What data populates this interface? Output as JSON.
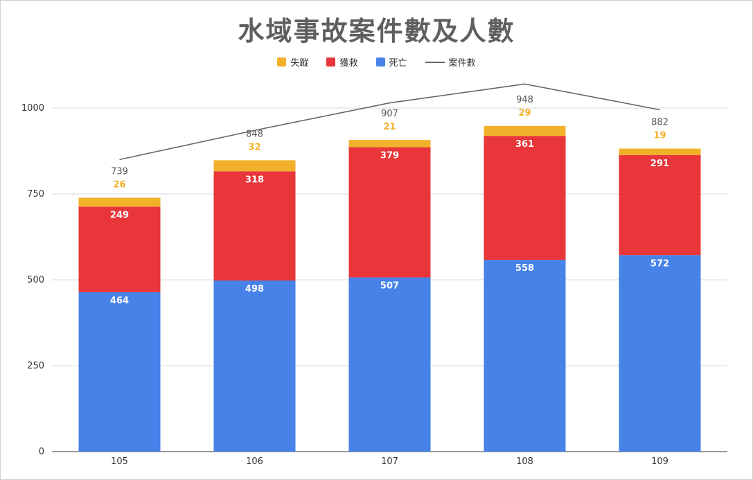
{
  "chart_data": {
    "type": "bar",
    "stacked": true,
    "title": "水域事故案件數及人數",
    "categories": [
      "105",
      "106",
      "107",
      "108",
      "109"
    ],
    "series": [
      {
        "name": "死亡",
        "color": "#4682e8",
        "values": [
          464,
          498,
          507,
          558,
          572
        ]
      },
      {
        "name": "獲救",
        "color": "#e8363a",
        "values": [
          249,
          318,
          379,
          361,
          291
        ]
      },
      {
        "name": "失蹤",
        "color": "#f2b12b",
        "values": [
          26,
          32,
          21,
          29,
          19
        ]
      }
    ],
    "line_series": {
      "name": "案件數",
      "color": "#666666",
      "values": [
        850,
        935,
        1015,
        1070,
        995
      ]
    },
    "totals": [
      "739",
      "848",
      "907",
      "948",
      "882"
    ],
    "yticks": [
      "0",
      "250",
      "500",
      "750",
      "1000"
    ],
    "ylim": [
      0,
      1000
    ],
    "legend_position": "top",
    "grid": true
  }
}
